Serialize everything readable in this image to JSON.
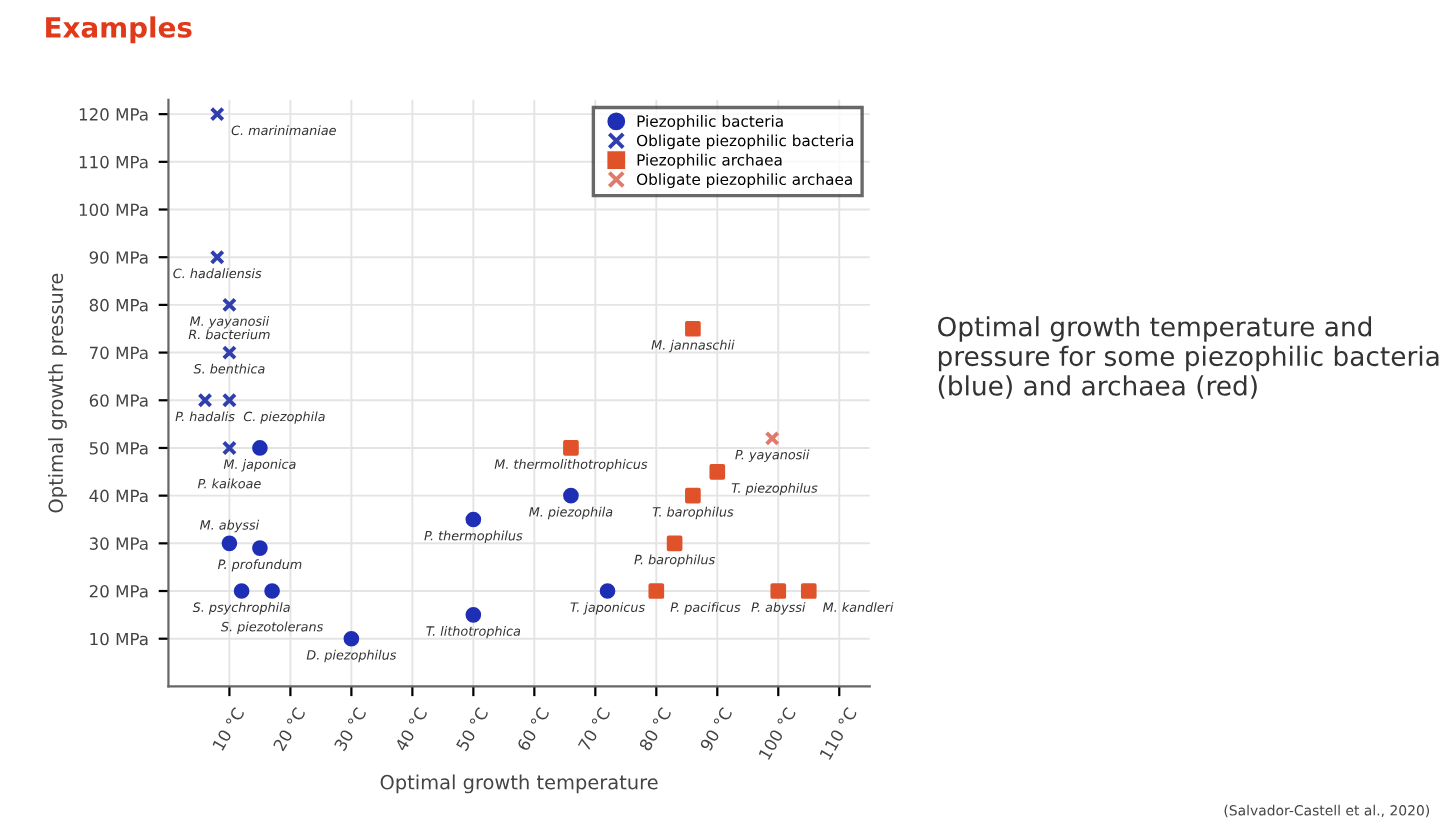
{
  "chart_data": {
    "type": "scatter",
    "title": "Examples",
    "xlabel": "Optimal growth temperature",
    "ylabel": "Optimal growth pressure",
    "xlim": [
      0,
      115
    ],
    "ylim": [
      0,
      123
    ],
    "xticks": [
      {
        "value": 10,
        "label": "10 °C"
      },
      {
        "value": 20,
        "label": "20 °C"
      },
      {
        "value": 30,
        "label": "30 °C"
      },
      {
        "value": 40,
        "label": "40 °C"
      },
      {
        "value": 50,
        "label": "50 °C"
      },
      {
        "value": 60,
        "label": "60 °C"
      },
      {
        "value": 70,
        "label": "70 °C"
      },
      {
        "value": 80,
        "label": "80 °C"
      },
      {
        "value": 90,
        "label": "90 °C"
      },
      {
        "value": 100,
        "label": "100 °C"
      },
      {
        "value": 110,
        "label": "110 °C"
      }
    ],
    "yticks": [
      {
        "value": 10,
        "label": "10 MPa"
      },
      {
        "value": 20,
        "label": "20 MPa"
      },
      {
        "value": 30,
        "label": "30 MPa"
      },
      {
        "value": 40,
        "label": "40 MPa"
      },
      {
        "value": 50,
        "label": "50 MPa"
      },
      {
        "value": 60,
        "label": "60 MPa"
      },
      {
        "value": 70,
        "label": "70 MPa"
      },
      {
        "value": 80,
        "label": "80 MPa"
      },
      {
        "value": 90,
        "label": "90 MPa"
      },
      {
        "value": 100,
        "label": "100 MPa"
      },
      {
        "value": 110,
        "label": "110 MPa"
      },
      {
        "value": 120,
        "label": "120 MPa"
      }
    ],
    "grid": true,
    "legend": "top right",
    "series": [
      {
        "name": "Piezophilic bacteria",
        "color": "#1f2fb5",
        "marker": "circle",
        "x": [
          15,
          10,
          15,
          12,
          17,
          30,
          50,
          50,
          66,
          72
        ],
        "values": [
          50,
          30,
          29,
          20,
          20,
          10,
          35,
          15,
          40,
          20
        ]
      },
      {
        "name": "Obligate piezophilic bacteria",
        "color": "#2f3fb0",
        "marker": "cross",
        "x": [
          8,
          8,
          10,
          10,
          6,
          10,
          10
        ],
        "values": [
          120,
          90,
          80,
          70,
          60,
          60,
          50
        ]
      },
      {
        "name": "Piezophilic archaea",
        "color": "#e0522a",
        "marker": "square",
        "x": [
          66,
          86,
          90,
          86,
          83,
          80,
          100,
          105
        ],
        "values": [
          50,
          75,
          45,
          40,
          30,
          20,
          20,
          20
        ]
      },
      {
        "name": "Obligate piezophilic archaea",
        "color": "#e07a6a",
        "marker": "cross",
        "x": [
          99
        ],
        "values": [
          52
        ]
      }
    ],
    "annotations": [
      {
        "text": "M. japonica",
        "x": 15,
        "y": 50
      },
      {
        "text": "M. abyssi",
        "x": 10,
        "y": 30
      },
      {
        "text": "P. profundum",
        "x": 15,
        "y": 29
      },
      {
        "text": "S. psychrophila",
        "x": 12,
        "y": 20
      },
      {
        "text": "S. piezotolerans",
        "x": 17,
        "y": 20
      },
      {
        "text": "D. piezophilus",
        "x": 30,
        "y": 10
      },
      {
        "text": "P. thermophilus",
        "x": 50,
        "y": 35
      },
      {
        "text": "T. lithotrophica",
        "x": 50,
        "y": 15
      },
      {
        "text": "M. piezophila",
        "x": 66,
        "y": 40
      },
      {
        "text": "T. japonicus",
        "x": 72,
        "y": 20
      },
      {
        "text": "C. marinimaniae",
        "x": 8,
        "y": 120
      },
      {
        "text": "C. hadaliensis",
        "x": 8,
        "y": 90
      },
      {
        "text": "M. yayanosii\nR. bacterium",
        "x": 10,
        "y": 80
      },
      {
        "text": "S. benthica",
        "x": 10,
        "y": 70
      },
      {
        "text": "P. hadalis",
        "x": 6,
        "y": 60
      },
      {
        "text": "C. piezophila",
        "x": 10,
        "y": 60
      },
      {
        "text": "P. kaikoae",
        "x": 10,
        "y": 50
      },
      {
        "text": "M. thermolithotrophicus",
        "x": 66,
        "y": 50
      },
      {
        "text": "M. jannaschii",
        "x": 86,
        "y": 75
      },
      {
        "text": "T. piezophilus",
        "x": 90,
        "y": 45
      },
      {
        "text": "T. barophilus",
        "x": 86,
        "y": 40
      },
      {
        "text": "P. barophilus",
        "x": 83,
        "y": 30
      },
      {
        "text": "P. pacificus",
        "x": 80,
        "y": 20
      },
      {
        "text": "P. abyssi",
        "x": 100,
        "y": 20
      },
      {
        "text": "M. kandleri",
        "x": 105,
        "y": 20
      },
      {
        "text": "P. yayanosii",
        "x": 99,
        "y": 52
      },
      "Optimal growth temperature and pressure for some piezophilic bacteria (blue) and archaea (red)",
      "(Salvador-Castell et al., 2020)"
    ]
  }
}
